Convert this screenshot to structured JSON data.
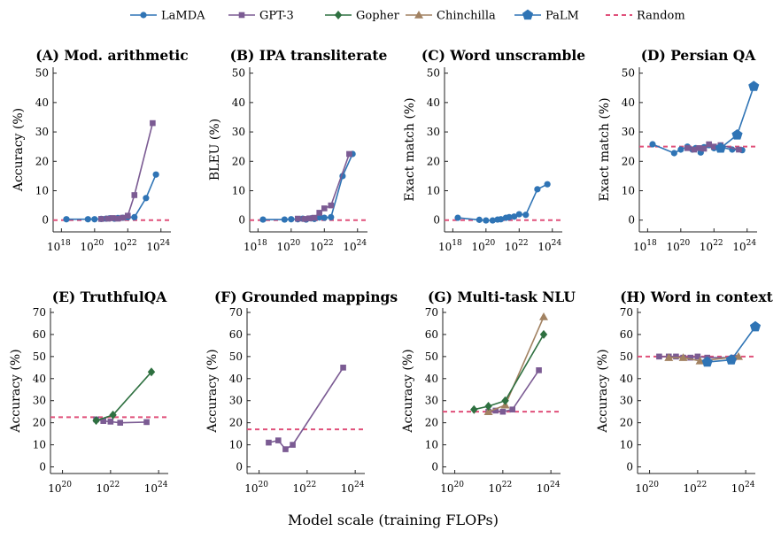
{
  "legend": [
    {
      "name": "LaMDA",
      "color": "#2f74b5",
      "marker": "circle"
    },
    {
      "name": "GPT-3",
      "color": "#7b5b93",
      "marker": "square"
    },
    {
      "name": "Gopher",
      "color": "#2e7040",
      "marker": "diamond"
    },
    {
      "name": "Chinchilla",
      "color": "#a28262",
      "marker": "triangle"
    },
    {
      "name": "PaLM",
      "color": "#2f74b5",
      "marker": "pentagon"
    },
    {
      "name": "Random",
      "color": "#e0507a",
      "marker": "dashed-line"
    }
  ],
  "xlabel": "Model scale (training FLOPs)",
  "chart_data": [
    {
      "type": "line",
      "title": "(A) Mod. arithmetic",
      "ylabel": "Accuracy (%)",
      "x_scale": "log",
      "xlim_exp": [
        17.5,
        24.6
      ],
      "xticks_exp": [
        18,
        20,
        22,
        24
      ],
      "ylim": [
        -4,
        52
      ],
      "yticks": [
        0,
        10,
        20,
        30,
        40,
        50
      ],
      "random": 0,
      "series": [
        {
          "model": "LaMDA",
          "x_exp": [
            18.3,
            19.6,
            20.0,
            20.4,
            20.7,
            20.9,
            21.2,
            21.4,
            21.7,
            22.0,
            22.4,
            23.1,
            23.7
          ],
          "y": [
            0.3,
            0.3,
            0.3,
            0.4,
            0.5,
            0.6,
            0.5,
            0.7,
            0.8,
            1.0,
            1.0,
            7.5,
            15.5
          ]
        },
        {
          "model": "GPT-3",
          "x_exp": [
            20.4,
            20.8,
            21.1,
            21.4,
            21.7,
            22.0,
            22.4,
            23.5
          ],
          "y": [
            0.4,
            0.5,
            0.7,
            0.5,
            0.8,
            1.5,
            8.5,
            33.0
          ]
        }
      ]
    },
    {
      "type": "line",
      "title": "(B) IPA transliterate",
      "ylabel": "BLEU (%)",
      "x_scale": "log",
      "xlim_exp": [
        17.5,
        24.6
      ],
      "xticks_exp": [
        18,
        20,
        22,
        24
      ],
      "ylim": [
        -4,
        52
      ],
      "yticks": [
        0,
        10,
        20,
        30,
        40,
        50
      ],
      "random": 0,
      "series": [
        {
          "model": "LaMDA",
          "x_exp": [
            18.3,
            19.6,
            20.0,
            20.4,
            20.7,
            20.9,
            21.2,
            21.4,
            21.7,
            22.0,
            22.4,
            23.1,
            23.7
          ],
          "y": [
            0.2,
            0.2,
            0.3,
            0.3,
            0.5,
            0.2,
            0.6,
            0.4,
            0.9,
            0.8,
            1.0,
            15.0,
            22.5
          ]
        },
        {
          "model": "GPT-3",
          "x_exp": [
            20.4,
            20.8,
            21.1,
            21.4,
            21.7,
            22.0,
            22.4,
            23.5
          ],
          "y": [
            0.5,
            0.4,
            0.6,
            0.8,
            2.5,
            4.0,
            5.0,
            22.5
          ]
        }
      ]
    },
    {
      "type": "line",
      "title": "(C) Word unscramble",
      "ylabel": "Exact match (%)",
      "x_scale": "log",
      "xlim_exp": [
        17.5,
        24.6
      ],
      "xticks_exp": [
        18,
        20,
        22,
        24
      ],
      "ylim": [
        -4,
        52
      ],
      "yticks": [
        0,
        10,
        20,
        30,
        40,
        50
      ],
      "random": 0,
      "series": [
        {
          "model": "LaMDA",
          "x_exp": [
            18.3,
            19.6,
            20.0,
            20.4,
            20.7,
            20.9,
            21.2,
            21.4,
            21.7,
            22.0,
            22.4,
            23.1,
            23.7
          ],
          "y": [
            0.8,
            0.1,
            -0.1,
            -0.1,
            0.2,
            0.3,
            0.8,
            1.0,
            1.2,
            2.0,
            1.8,
            10.5,
            12.2
          ]
        }
      ]
    },
    {
      "type": "line",
      "title": "(D) Persian QA",
      "ylabel": "Exact match (%)",
      "x_scale": "log",
      "xlim_exp": [
        17.5,
        24.6
      ],
      "xticks_exp": [
        18,
        20,
        22,
        24
      ],
      "ylim": [
        -4,
        52
      ],
      "yticks": [
        0,
        10,
        20,
        30,
        40,
        50
      ],
      "random": 25,
      "series": [
        {
          "model": "LaMDA",
          "x_exp": [
            18.3,
            19.6,
            20.0,
            20.4,
            20.7,
            20.9,
            21.2,
            21.4,
            21.7,
            22.0,
            22.4,
            23.1,
            23.7
          ],
          "y": [
            25.8,
            22.8,
            24.0,
            25.0,
            24.0,
            24.5,
            23.0,
            24.8,
            25.5,
            24.5,
            24.8,
            24.0,
            23.8
          ]
        },
        {
          "model": "GPT-3",
          "x_exp": [
            20.4,
            20.8,
            21.1,
            21.4,
            21.7,
            22.0,
            22.4,
            23.5
          ],
          "y": [
            24.5,
            24.0,
            24.5,
            24.3,
            25.8,
            25.0,
            25.5,
            24.0
          ]
        },
        {
          "model": "PaLM",
          "x_exp": [
            22.4,
            23.4,
            24.4
          ],
          "y": [
            24.5,
            29.0,
            45.5
          ]
        }
      ]
    },
    {
      "type": "line",
      "title": "(E) TruthfulQA",
      "ylabel": "Accuracy (%)",
      "x_scale": "log",
      "xlim_exp": [
        19.5,
        24.4
      ],
      "xticks_exp": [
        20,
        22,
        24
      ],
      "ylim": [
        -3,
        72
      ],
      "yticks": [
        0,
        10,
        20,
        30,
        40,
        50,
        60,
        70
      ],
      "random": 22.5,
      "series": [
        {
          "model": "GPT-3",
          "x_exp": [
            21.4,
            21.7,
            22.0,
            22.4,
            23.5
          ],
          "y": [
            21.5,
            20.8,
            20.5,
            20.0,
            20.3
          ]
        },
        {
          "model": "Gopher",
          "x_exp": [
            21.4,
            22.1,
            23.7
          ],
          "y": [
            21.0,
            23.5,
            43.0
          ]
        }
      ]
    },
    {
      "type": "line",
      "title": "(F) Grounded mappings",
      "ylabel": "Accuracy (%)",
      "x_scale": "log",
      "xlim_exp": [
        19.5,
        24.4
      ],
      "xticks_exp": [
        20,
        22,
        24
      ],
      "ylim": [
        -3,
        72
      ],
      "yticks": [
        0,
        10,
        20,
        30,
        40,
        50,
        60,
        70
      ],
      "random": 17,
      "series": [
        {
          "model": "GPT-3",
          "x_exp": [
            20.4,
            20.8,
            21.1,
            21.4,
            23.5
          ],
          "y": [
            11.0,
            12.0,
            8.0,
            10.0,
            45.0
          ]
        }
      ]
    },
    {
      "type": "line",
      "title": "(G) Multi-task NLU",
      "ylabel": "Accuracy (%)",
      "x_scale": "log",
      "xlim_exp": [
        19.5,
        24.4
      ],
      "xticks_exp": [
        20,
        22,
        24
      ],
      "ylim": [
        -3,
        72
      ],
      "yticks": [
        0,
        10,
        20,
        30,
        40,
        50,
        60,
        70
      ],
      "random": 25,
      "series": [
        {
          "model": "GPT-3",
          "x_exp": [
            21.4,
            21.7,
            22.0,
            22.4,
            23.5
          ],
          "y": [
            25.0,
            25.5,
            25.0,
            26.0,
            43.8
          ]
        },
        {
          "model": "Chinchilla",
          "x_exp": [
            21.4,
            22.1,
            23.7
          ],
          "y": [
            25.0,
            28.0,
            68.0
          ]
        },
        {
          "model": "Gopher",
          "x_exp": [
            20.8,
            21.4,
            22.1,
            23.7
          ],
          "y": [
            26.0,
            27.5,
            30.0,
            60.0
          ]
        }
      ]
    },
    {
      "type": "line",
      "title": "(H) Word in context",
      "ylabel": "Accuracy (%)",
      "x_scale": "log",
      "xlim_exp": [
        19.5,
        24.4
      ],
      "xticks_exp": [
        20,
        22,
        24
      ],
      "ylim": [
        -3,
        72
      ],
      "yticks": [
        0,
        10,
        20,
        30,
        40,
        50,
        60,
        70
      ],
      "random": 50,
      "series": [
        {
          "model": "GPT-3",
          "x_exp": [
            20.4,
            20.8,
            21.1,
            21.4,
            21.7,
            22.0,
            22.4,
            23.5
          ],
          "y": [
            50.0,
            50.0,
            50.0,
            49.5,
            49.5,
            50.0,
            49.5,
            49.5
          ]
        },
        {
          "model": "Chinchilla",
          "x_exp": [
            20.8,
            21.4,
            22.1,
            23.7
          ],
          "y": [
            49.5,
            49.5,
            48.0,
            50.0
          ]
        },
        {
          "model": "PaLM",
          "x_exp": [
            22.4,
            23.4,
            24.4
          ],
          "y": [
            47.5,
            48.5,
            63.5
          ]
        }
      ]
    }
  ]
}
